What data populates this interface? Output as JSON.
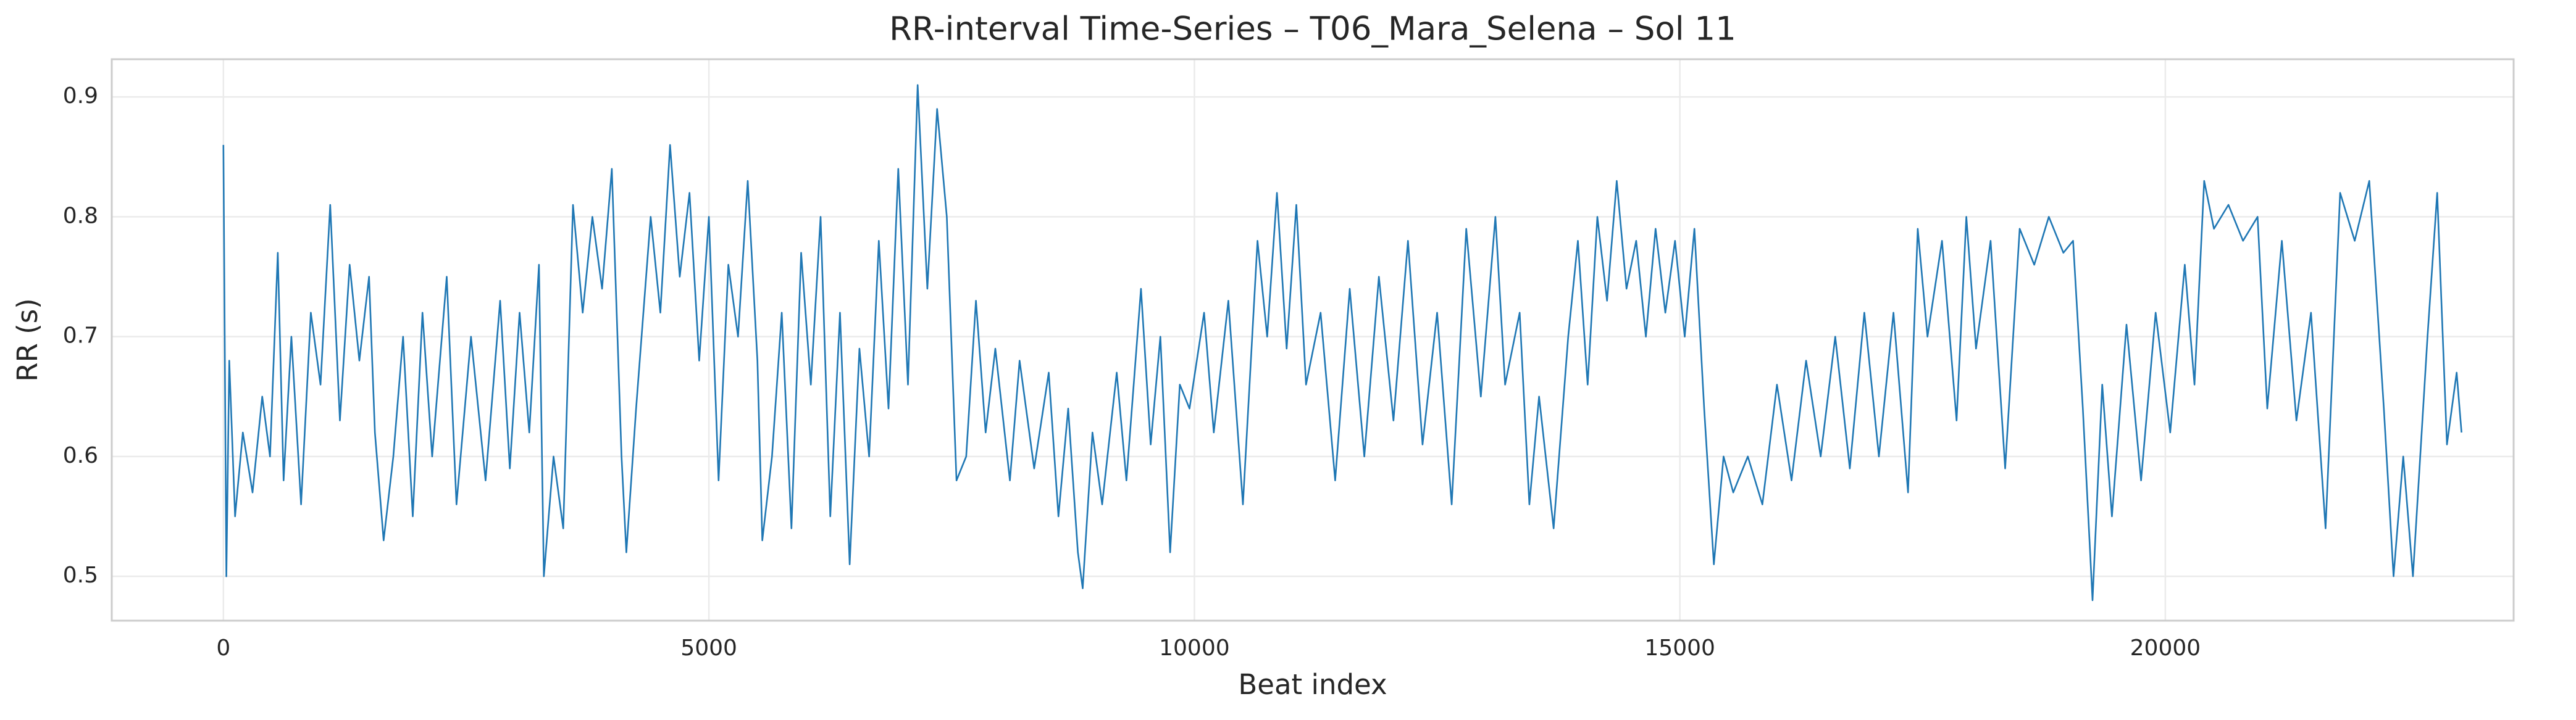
{
  "chart_data": {
    "type": "line",
    "title": "RR-interval Time-Series – T06_Mara_Selena – Sol 11",
    "x_label": "Beat index",
    "y_label": "RR (s)",
    "xlim": [
      -1150,
      23587
    ],
    "ylim": [
      0.463,
      0.9315
    ],
    "xticks": [
      0,
      5000,
      10000,
      15000,
      20000
    ],
    "yticks": [
      0.5,
      0.6,
      0.7,
      0.8,
      0.9
    ],
    "grid": true,
    "series": [
      {
        "color": "#1f77b4",
        "x": [
          0,
          30,
          60,
          120,
          200,
          300,
          400,
          480,
          560,
          620,
          700,
          800,
          900,
          1000,
          1100,
          1200,
          1300,
          1400,
          1500,
          1560,
          1650,
          1750,
          1850,
          1950,
          2050,
          2150,
          2300,
          2400,
          2550,
          2700,
          2850,
          2950,
          3050,
          3150,
          3250,
          3300,
          3400,
          3500,
          3600,
          3700,
          3800,
          3900,
          4000,
          4100,
          4150,
          4250,
          4400,
          4500,
          4600,
          4700,
          4800,
          4900,
          5000,
          5100,
          5200,
          5300,
          5400,
          5500,
          5550,
          5650,
          5750,
          5850,
          5950,
          6050,
          6150,
          6250,
          6350,
          6450,
          6550,
          6650,
          6750,
          6850,
          6950,
          7050,
          7150,
          7250,
          7350,
          7450,
          7550,
          7650,
          7750,
          7850,
          7950,
          8100,
          8200,
          8350,
          8500,
          8600,
          8700,
          8800,
          8850,
          8950,
          9050,
          9200,
          9300,
          9450,
          9550,
          9650,
          9750,
          9850,
          9950,
          10100,
          10200,
          10350,
          10500,
          10650,
          10750,
          10850,
          10950,
          11050,
          11150,
          11300,
          11450,
          11600,
          11750,
          11900,
          12050,
          12200,
          12350,
          12500,
          12650,
          12800,
          12950,
          13100,
          13200,
          13350,
          13450,
          13550,
          13700,
          13850,
          13950,
          14050,
          14150,
          14250,
          14350,
          14450,
          14550,
          14650,
          14750,
          14850,
          14950,
          15050,
          15150,
          15250,
          15350,
          15450,
          15550,
          15700,
          15850,
          16000,
          16150,
          16300,
          16450,
          16600,
          16750,
          16900,
          17050,
          17200,
          17350,
          17450,
          17550,
          17700,
          17850,
          17950,
          18050,
          18200,
          18350,
          18500,
          18650,
          18800,
          18950,
          19050,
          19150,
          19250,
          19350,
          19450,
          19600,
          19750,
          19900,
          20050,
          20200,
          20300,
          20400,
          20500,
          20650,
          20800,
          20950,
          21050,
          21200,
          21350,
          21500,
          21650,
          21800,
          21950,
          22100,
          22250,
          22350,
          22450,
          22550,
          22700,
          22800,
          22900,
          23000,
          23050
        ],
        "values": [
          0.86,
          0.5,
          0.68,
          0.55,
          0.62,
          0.57,
          0.65,
          0.6,
          0.77,
          0.58,
          0.7,
          0.56,
          0.72,
          0.66,
          0.81,
          0.63,
          0.76,
          0.68,
          0.75,
          0.62,
          0.53,
          0.6,
          0.7,
          0.55,
          0.72,
          0.6,
          0.75,
          0.56,
          0.7,
          0.58,
          0.73,
          0.59,
          0.72,
          0.62,
          0.76,
          0.5,
          0.6,
          0.54,
          0.81,
          0.72,
          0.8,
          0.74,
          0.84,
          0.6,
          0.52,
          0.64,
          0.8,
          0.72,
          0.86,
          0.75,
          0.82,
          0.68,
          0.8,
          0.58,
          0.76,
          0.7,
          0.83,
          0.68,
          0.53,
          0.6,
          0.72,
          0.54,
          0.77,
          0.66,
          0.8,
          0.55,
          0.72,
          0.51,
          0.69,
          0.6,
          0.78,
          0.64,
          0.84,
          0.66,
          0.91,
          0.74,
          0.89,
          0.8,
          0.58,
          0.6,
          0.73,
          0.62,
          0.69,
          0.58,
          0.68,
          0.59,
          0.67,
          0.55,
          0.64,
          0.52,
          0.49,
          0.62,
          0.56,
          0.67,
          0.58,
          0.74,
          0.61,
          0.7,
          0.52,
          0.66,
          0.64,
          0.72,
          0.62,
          0.73,
          0.56,
          0.78,
          0.7,
          0.82,
          0.69,
          0.81,
          0.66,
          0.72,
          0.58,
          0.74,
          0.6,
          0.75,
          0.63,
          0.78,
          0.61,
          0.72,
          0.56,
          0.79,
          0.65,
          0.8,
          0.66,
          0.72,
          0.56,
          0.65,
          0.54,
          0.7,
          0.78,
          0.66,
          0.8,
          0.73,
          0.83,
          0.74,
          0.78,
          0.7,
          0.79,
          0.72,
          0.78,
          0.7,
          0.79,
          0.64,
          0.51,
          0.6,
          0.57,
          0.6,
          0.56,
          0.66,
          0.58,
          0.68,
          0.6,
          0.7,
          0.59,
          0.72,
          0.6,
          0.72,
          0.57,
          0.79,
          0.7,
          0.78,
          0.63,
          0.8,
          0.69,
          0.78,
          0.59,
          0.79,
          0.76,
          0.8,
          0.77,
          0.78,
          0.64,
          0.48,
          0.66,
          0.55,
          0.71,
          0.58,
          0.72,
          0.62,
          0.76,
          0.66,
          0.83,
          0.79,
          0.81,
          0.78,
          0.8,
          0.64,
          0.78,
          0.63,
          0.72,
          0.54,
          0.82,
          0.78,
          0.83,
          0.64,
          0.5,
          0.6,
          0.5,
          0.7,
          0.82,
          0.61,
          0.67,
          0.62
        ]
      }
    ]
  }
}
